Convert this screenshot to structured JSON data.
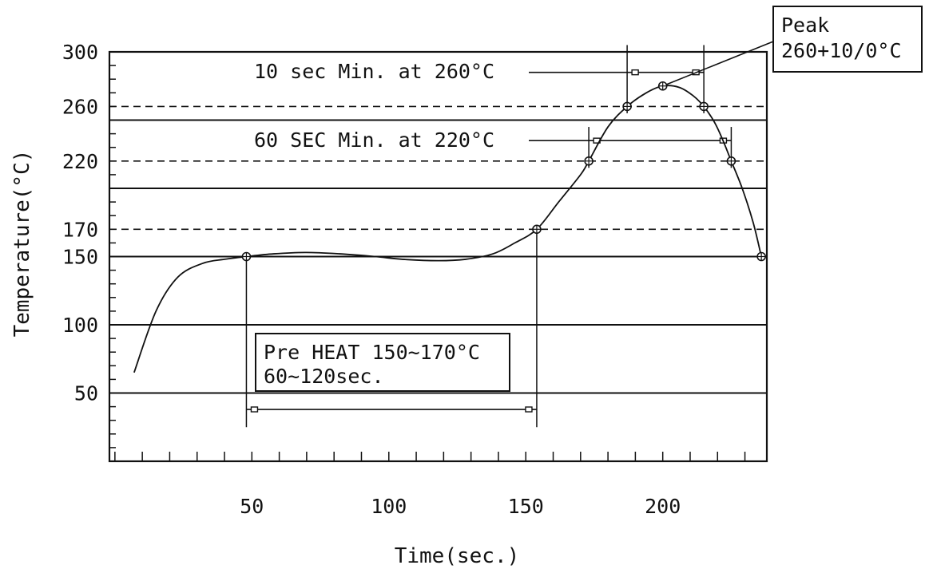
{
  "chart_data": {
    "type": "line",
    "xlabel": "Time(sec.)",
    "ylabel": "Temperature(°C)",
    "xlim": [
      -2,
      238
    ],
    "ylim": [
      0,
      300
    ],
    "x_ticks": [
      50,
      100,
      150,
      200
    ],
    "y_ticks": [
      50,
      100,
      150,
      170,
      220,
      260,
      300
    ],
    "grid": "horizontal lines",
    "solid_gridlines_y": [
      50,
      100,
      150,
      200,
      250,
      300
    ],
    "dashed_gridlines_y": [
      170,
      220,
      260
    ],
    "series": [
      {
        "values": [
          [
            7,
            65
          ],
          [
            15,
            110
          ],
          [
            23,
            135
          ],
          [
            32,
            145
          ],
          [
            40,
            148
          ],
          [
            48,
            150
          ],
          [
            58,
            152
          ],
          [
            70,
            153
          ],
          [
            82,
            152
          ],
          [
            95,
            150
          ],
          [
            105,
            148
          ],
          [
            118,
            147
          ],
          [
            128,
            148
          ],
          [
            138,
            152
          ],
          [
            146,
            160
          ],
          [
            154,
            170
          ],
          [
            162,
            190
          ],
          [
            170,
            210
          ],
          [
            173,
            220
          ],
          [
            180,
            245
          ],
          [
            187,
            260
          ],
          [
            194,
            270
          ],
          [
            200,
            275
          ],
          [
            206,
            274
          ],
          [
            211,
            268
          ],
          [
            215,
            260
          ],
          [
            219,
            248
          ],
          [
            222,
            235
          ],
          [
            225,
            220
          ],
          [
            229,
            200
          ],
          [
            233,
            175
          ],
          [
            236,
            150
          ]
        ]
      }
    ],
    "markers": [
      {
        "x": 48,
        "y": 150
      },
      {
        "x": 154,
        "y": 170
      },
      {
        "x": 173,
        "y": 220
      },
      {
        "x": 187,
        "y": 260
      },
      {
        "x": 200,
        "y": 275
      },
      {
        "x": 215,
        "y": 260
      },
      {
        "x": 225,
        "y": 220
      },
      {
        "x": 236,
        "y": 150
      }
    ],
    "annotations": {
      "peak_label_1": "Peak",
      "peak_label_2": "260+10/0°C",
      "sec10_label": "10 sec Min.  at 260°C",
      "sec60_label": "60 SEC Min.  at 220°C",
      "preheat_label_1": "Pre HEAT 150~170°C",
      "preheat_label_2": "60~120sec."
    },
    "dimensions": {
      "sec10": {
        "x1": 187,
        "x2": 215,
        "y": 285
      },
      "sec60": {
        "x1": 173,
        "x2": 225,
        "y": 235
      },
      "preheat": {
        "x1": 48,
        "x2": 154,
        "y": 38
      }
    }
  }
}
